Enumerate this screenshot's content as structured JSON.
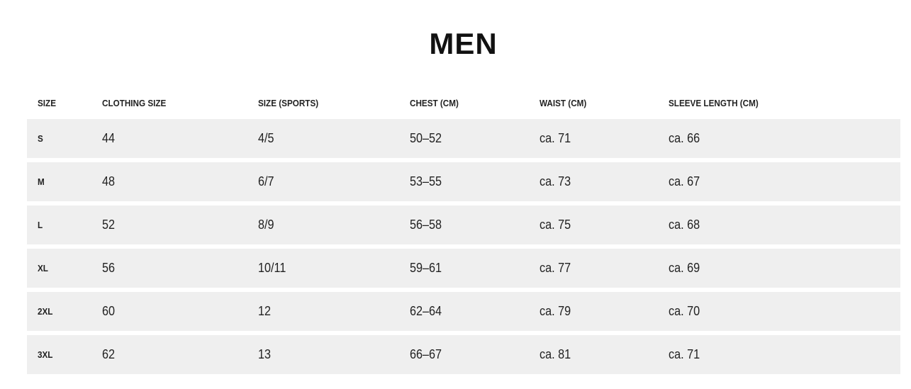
{
  "title": "MEN",
  "table": {
    "headers": [
      "SIZE",
      "CLOTHING SIZE",
      "SIZE (SPORTS)",
      "CHEST (CM)",
      "WAIST (CM)",
      "SLEEVE LENGTH (CM)"
    ],
    "rows": [
      [
        "S",
        "44",
        "4/5",
        "50–52",
        "ca. 71",
        "ca. 66"
      ],
      [
        "M",
        "48",
        "6/7",
        "53–55",
        "ca. 73",
        "ca. 67"
      ],
      [
        "L",
        "52",
        "8/9",
        "56–58",
        "ca. 75",
        "ca. 68"
      ],
      [
        "XL",
        "56",
        "10/11",
        "59–61",
        "ca. 77",
        "ca. 69"
      ],
      [
        "2XL",
        "60",
        "12",
        "62–64",
        "ca. 79",
        "ca. 70"
      ],
      [
        "3XL",
        "62",
        "13",
        "66–67",
        "ca. 81",
        "ca. 71"
      ]
    ]
  },
  "colors": {
    "row_background": "#efefef",
    "text": "#111111"
  }
}
